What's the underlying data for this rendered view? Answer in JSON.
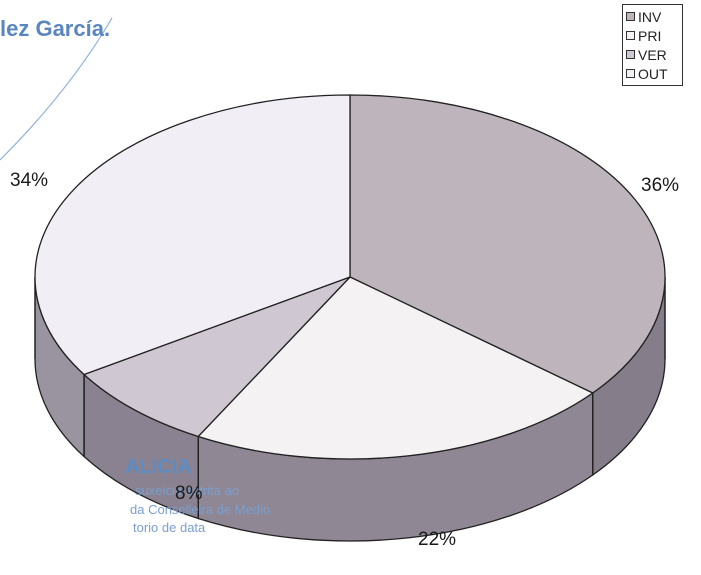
{
  "stamp": {
    "name_fragment": "lez García.",
    "org_fragment": "ALICIA",
    "line1": "suxeició estrita ao",
    "line2": "da Conselleira de Medio",
    "line3": "torio de data"
  },
  "chart_data": {
    "type": "pie",
    "categories": [
      "INV",
      "PRI",
      "VER",
      "OUT"
    ],
    "values": [
      36,
      22,
      8,
      34
    ],
    "value_labels": [
      "36%",
      "22%",
      "8%",
      "34%"
    ],
    "legend_position": "top-right",
    "colors": [
      "#bdb4bc",
      "#f4f2f2",
      "#cfc8d3",
      "#f1eef6"
    ],
    "side_colors": [
      "#857d89",
      "#8f8794",
      "#8a8290",
      "#9a93a0"
    ]
  }
}
